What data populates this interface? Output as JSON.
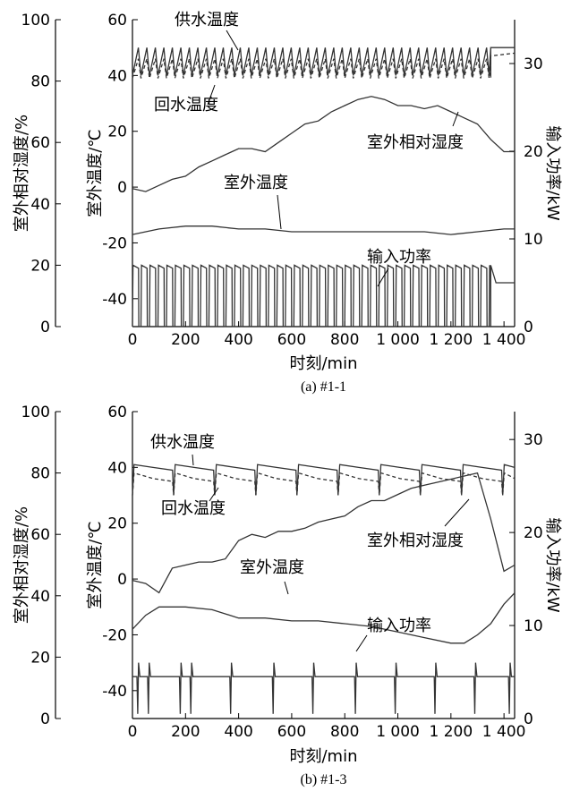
{
  "chart_data": [
    {
      "type": "line",
      "caption": "(a) #1-1",
      "xlabel": "时刻/min",
      "ylabel_left_outer": "室外相对湿度/%",
      "ylabel_left_inner": "室外温度/℃",
      "ylabel_right": "输入功率/kW",
      "xlim": [
        0,
        1440
      ],
      "xticks": [
        0,
        200,
        400,
        600,
        800,
        1000,
        1200,
        1400
      ],
      "xtick_labels": [
        "0",
        "200",
        "400",
        "600",
        "800",
        "1 000",
        "1 200",
        "1 400"
      ],
      "rh_ylim": [
        0,
        100
      ],
      "rh_ticks": [
        "100",
        "80",
        "60",
        "40",
        "20",
        "0"
      ],
      "rh_tick_values": [
        100,
        80,
        60,
        40,
        20,
        0
      ],
      "temp_ylim": [
        -50,
        60
      ],
      "temp_ticks": [
        "60",
        "40",
        "20",
        "0",
        "-20",
        "-40"
      ],
      "temp_tick_values": [
        60,
        40,
        20,
        0,
        -20,
        -40
      ],
      "power_ylim": [
        0,
        35
      ],
      "power_ticks": [
        "30",
        "20",
        "10",
        "0"
      ],
      "power_tick_values": [
        30,
        20,
        10,
        0
      ],
      "annotations": {
        "supply": "供水温度",
        "return": "回水温度",
        "rh": "室外相对湿度",
        "outdoor": "室外温度",
        "power": "输入功率"
      },
      "series": [
        {
          "name": "供水温度",
          "axis": "temp",
          "pattern": "sawtooth",
          "x_start": 0,
          "x_end": 1350,
          "period": 32,
          "low": 40,
          "high": 50,
          "tail": {
            "x": [
              1350,
              1440
            ],
            "y": [
              50,
              50
            ]
          }
        },
        {
          "name": "回水温度",
          "axis": "temp",
          "pattern": "sawtooth",
          "x_start": 0,
          "x_end": 1350,
          "period": 32,
          "low": 39,
          "high": 46,
          "tail": {
            "x": [
              1350,
              1440
            ],
            "y": [
              47,
              48
            ]
          }
        },
        {
          "name": "室外相对湿度",
          "axis": "rh",
          "x": [
            0,
            50,
            100,
            150,
            200,
            250,
            300,
            350,
            400,
            450,
            500,
            550,
            600,
            650,
            700,
            750,
            800,
            850,
            900,
            950,
            1000,
            1050,
            1100,
            1150,
            1200,
            1250,
            1300,
            1350,
            1400,
            1440
          ],
          "y": [
            45,
            44,
            46,
            48,
            49,
            52,
            54,
            56,
            58,
            58,
            57,
            60,
            63,
            66,
            67,
            70,
            72,
            74,
            75,
            74,
            72,
            72,
            71,
            72,
            70,
            68,
            66,
            61,
            57,
            57
          ]
        },
        {
          "name": "室外温度",
          "axis": "temp",
          "x": [
            0,
            100,
            200,
            300,
            400,
            500,
            600,
            700,
            800,
            900,
            1000,
            1100,
            1200,
            1300,
            1400,
            1440
          ],
          "y": [
            -17,
            -15,
            -14,
            -14,
            -15,
            -15,
            -16,
            -16,
            -16,
            -16,
            -16,
            -16,
            -17,
            -16,
            -15,
            -15
          ]
        },
        {
          "name": "输入功率",
          "axis": "power",
          "pattern": "cycling",
          "x_start": 0,
          "x_end": 1350,
          "period": 32,
          "low": 0,
          "high": 7,
          "tail": {
            "x": [
              1350,
              1370,
              1440
            ],
            "y": [
              7,
              5,
              5
            ]
          }
        }
      ]
    },
    {
      "type": "line",
      "caption": "(b) #1-3",
      "xlabel": "时刻/min",
      "ylabel_left_outer": "室外相对湿度/%",
      "ylabel_left_inner": "室外温度/℃",
      "ylabel_right": "输入功率/kW",
      "xlim": [
        0,
        1440
      ],
      "xticks": [
        0,
        200,
        400,
        600,
        800,
        1000,
        1200,
        1400
      ],
      "xtick_labels": [
        "0",
        "200",
        "400",
        "600",
        "800",
        "1 000",
        "1 200",
        "1 400"
      ],
      "rh_ylim": [
        0,
        100
      ],
      "rh_ticks": [
        "100",
        "80",
        "60",
        "40",
        "20",
        "0"
      ],
      "rh_tick_values": [
        100,
        80,
        60,
        40,
        20,
        0
      ],
      "temp_ylim": [
        -50,
        60
      ],
      "temp_ticks": [
        "60",
        "40",
        "20",
        "0",
        "-20",
        "-40"
      ],
      "temp_tick_values": [
        60,
        40,
        20,
        0,
        -20,
        -40
      ],
      "power_ylim": [
        0,
        33
      ],
      "power_ticks": [
        "30",
        "20",
        "10",
        "0"
      ],
      "power_tick_values": [
        30,
        20,
        10,
        0
      ],
      "annotations": {
        "supply": "供水温度",
        "return": "回水温度",
        "rh": "室外相对湿度",
        "outdoor": "室外温度",
        "power": "输入功率"
      },
      "series": [
        {
          "name": "供水温度",
          "axis": "temp",
          "pattern": "defrost",
          "x_start": 0,
          "x_end": 1440,
          "period": 155,
          "low": 30,
          "high": 41,
          "base": 40
        },
        {
          "name": "回水温度",
          "axis": "temp",
          "pattern": "defrost",
          "x_start": 0,
          "x_end": 1440,
          "period": 155,
          "low": 30,
          "high": 38,
          "base": 36
        },
        {
          "name": "室外相对湿度",
          "axis": "rh",
          "x": [
            0,
            50,
            100,
            150,
            200,
            250,
            300,
            350,
            400,
            450,
            500,
            550,
            600,
            650,
            700,
            750,
            800,
            850,
            900,
            950,
            1000,
            1050,
            1100,
            1150,
            1200,
            1250,
            1300,
            1350,
            1400,
            1440
          ],
          "y": [
            45,
            44,
            41,
            49,
            50,
            51,
            51,
            52,
            58,
            60,
            59,
            61,
            61,
            62,
            64,
            65,
            66,
            69,
            71,
            71,
            73,
            75,
            76,
            77,
            78,
            79,
            80,
            65,
            48,
            50
          ]
        },
        {
          "name": "室外温度",
          "axis": "temp",
          "x": [
            0,
            50,
            100,
            200,
            300,
            400,
            500,
            600,
            700,
            800,
            900,
            1000,
            1100,
            1200,
            1250,
            1300,
            1350,
            1400,
            1440
          ],
          "y": [
            -18,
            -13,
            -10,
            -10,
            -11,
            -14,
            -14,
            -15,
            -15,
            -16,
            -17,
            -19,
            -21,
            -23,
            -23,
            -20,
            -16,
            -9,
            -5
          ]
        },
        {
          "name": "输入功率",
          "axis": "power",
          "pattern": "spikes",
          "x_start": 0,
          "x_end": 1440,
          "base": 4.5,
          "spike_x": [
            20,
            60,
            180,
            220,
            370,
            530,
            680,
            840,
            990,
            1140,
            1290,
            1420
          ],
          "tail": {
            "x": [
              1400,
              1440
            ],
            "y": [
              4,
              4
            ]
          }
        }
      ]
    }
  ]
}
